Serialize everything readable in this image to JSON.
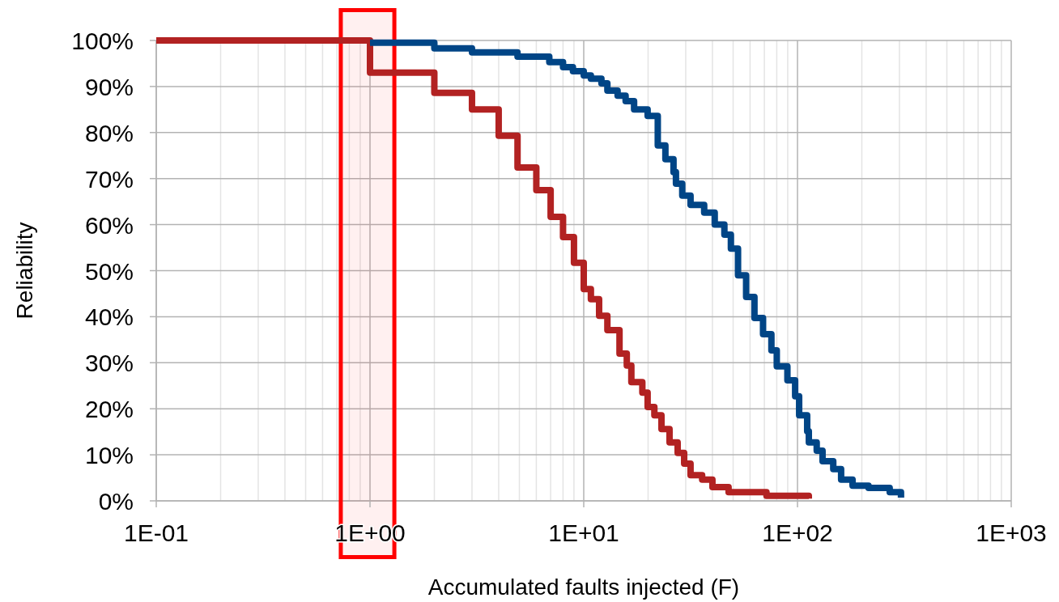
{
  "chart_data": {
    "type": "step",
    "xlabel": "Accumulated faults injected (F)",
    "ylabel": "Reliability",
    "log": "x",
    "grid": true,
    "marker": "none",
    "bands": [
      {
        "axis": "x",
        "from": 0.73,
        "to": 1.3,
        "color": "#ff0000"
      }
    ],
    "line_style": "solid",
    "xlim": [
      0.1,
      1000
    ],
    "xticks": [
      {
        "value": 0.1,
        "label": "1E-01"
      },
      {
        "value": 1,
        "label": "1E+00"
      },
      {
        "value": 10,
        "label": "1E+01"
      },
      {
        "value": 100,
        "label": "1E+02"
      },
      {
        "value": 1000,
        "label": "1E+03"
      }
    ],
    "ylim": [
      0,
      100
    ],
    "yticks": [
      {
        "value": 0,
        "label": "0%"
      },
      {
        "value": 10,
        "label": "10%"
      },
      {
        "value": 20,
        "label": "20%"
      },
      {
        "value": 30,
        "label": "30%"
      },
      {
        "value": 40,
        "label": "40%"
      },
      {
        "value": 50,
        "label": "50%"
      },
      {
        "value": 60,
        "label": "60%"
      },
      {
        "value": 70,
        "label": "70%"
      },
      {
        "value": 80,
        "label": "80%"
      },
      {
        "value": 90,
        "label": "90%"
      },
      {
        "value": 100,
        "label": "100%"
      }
    ],
    "series": [
      {
        "color": "#b22222",
        "x": [
          0.1,
          1,
          2,
          3,
          4,
          4.9,
          6,
          7,
          8,
          9,
          10,
          10.8,
          11.8,
          12.9,
          14.7,
          15.9,
          16.7,
          18.8,
          19.9,
          21.4,
          23.1,
          25.2,
          27.5,
          29.5,
          31.6,
          35.8,
          40,
          47.6,
          71.6,
          113
        ],
        "values": [
          100,
          93,
          88.6,
          85,
          79.3,
          72.4,
          67.5,
          61.7,
          57.3,
          51.7,
          46,
          43.8,
          40.2,
          37.1,
          32,
          29.4,
          25.8,
          23.5,
          20.4,
          18.6,
          15.6,
          12.7,
          10.4,
          8.1,
          5.6,
          4.6,
          3,
          1.9,
          1.1,
          0.5
        ]
      },
      {
        "color": "#004586",
        "x": [
          1,
          2,
          3,
          4.9,
          6.9,
          8,
          8.9,
          10,
          10.8,
          12.1,
          12.9,
          14.4,
          15.7,
          17.2,
          19.9,
          22.2,
          24.1,
          26.3,
          27,
          28.9,
          31.6,
          36.6,
          41,
          45.5,
          48.8,
          52.7,
          57.5,
          62.9,
          69,
          75.5,
          80,
          89.7,
          97.5,
          101.8,
          111,
          113,
          123,
          131,
          147,
          160,
          181,
          215,
          270,
          305
        ],
        "values": [
          99.5,
          98.3,
          97.4,
          96.5,
          95.3,
          94.2,
          93.3,
          92.4,
          91.7,
          90.7,
          89.1,
          88,
          86.8,
          85,
          83.6,
          77.2,
          74.2,
          71.4,
          68.9,
          66.3,
          64.3,
          62.6,
          60,
          57.8,
          54.8,
          49,
          44.3,
          39.7,
          36.2,
          32.7,
          29.2,
          26.2,
          22.7,
          18.6,
          15.1,
          12.7,
          10.9,
          8.6,
          6.9,
          4.6,
          3.3,
          2.8,
          1.9,
          0.7
        ]
      }
    ]
  }
}
